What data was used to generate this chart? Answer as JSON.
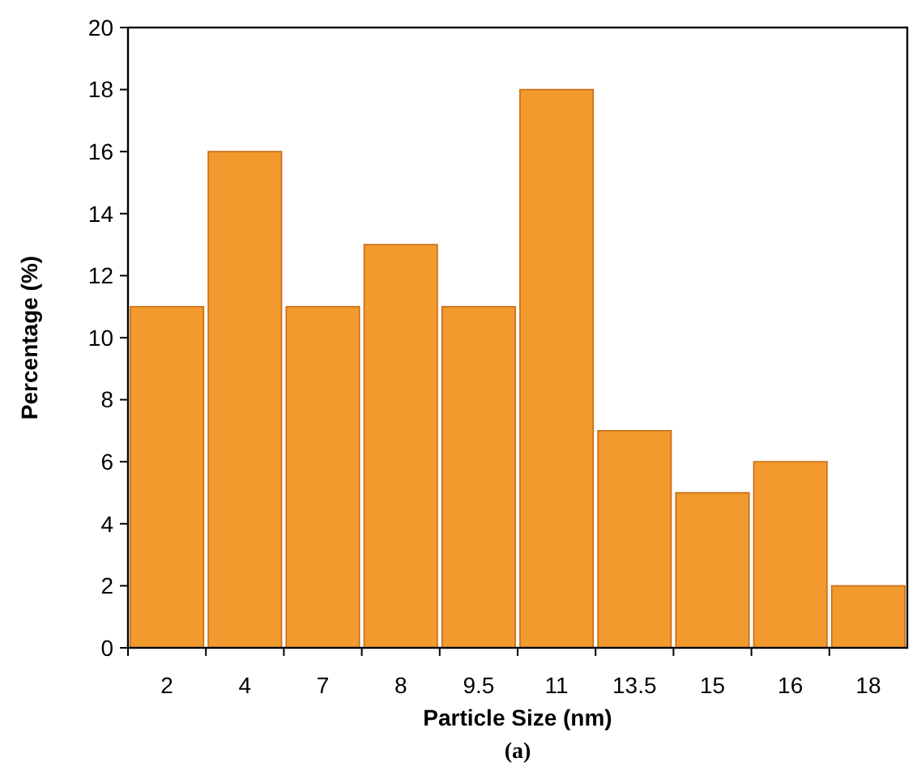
{
  "chart_data": {
    "type": "bar",
    "xlabel": "Particle Size (nm)",
    "ylabel": "Percentage (%)",
    "categories": [
      "2",
      "4",
      "7",
      "8",
      "9.5",
      "11",
      "13.5",
      "15",
      "16",
      "18"
    ],
    "values": [
      11,
      16,
      11,
      13,
      11,
      18,
      7,
      5,
      6,
      2
    ],
    "color": "#f39a2e",
    "ylim": [
      0,
      20
    ],
    "yticks": [
      0,
      2,
      4,
      6,
      8,
      10,
      12,
      14,
      16,
      18,
      20
    ],
    "annotations": [
      "(a)"
    ]
  }
}
